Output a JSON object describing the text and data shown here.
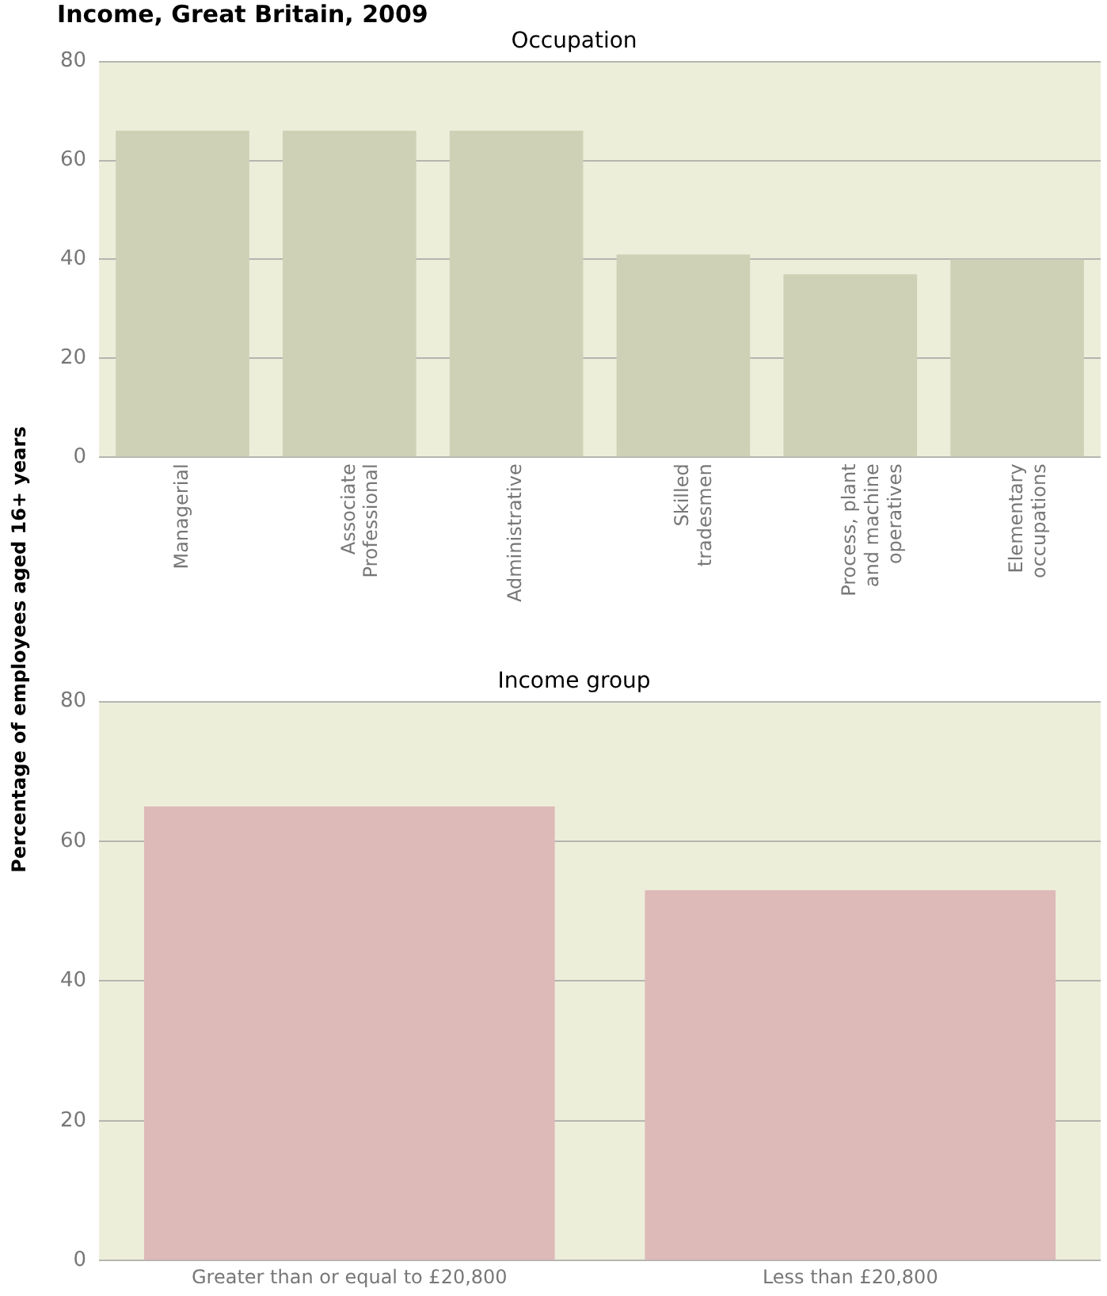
{
  "chart_data": [
    {
      "type": "bar",
      "title": "Occupation",
      "ylabel": "Percentage of employees aged 16+ years",
      "annotations": [
        "Income, Great Britain, 2009"
      ],
      "categories": [
        "Managerial",
        "Associate Professional",
        "Administrative",
        "Skilled tradesmen",
        "Process, plant and machine operatives",
        "Elementary occupations"
      ],
      "values": [
        66,
        66,
        66,
        41,
        37,
        40
      ],
      "color": "#cfd1b6",
      "ylim": [
        0,
        80
      ],
      "yticks": [
        0,
        20,
        40,
        60,
        80
      ],
      "grid": "y"
    },
    {
      "type": "bar",
      "title": "Income group",
      "categories": [
        "Greater than or equal to £20,800",
        "Less than £20,800"
      ],
      "values": [
        65,
        53
      ],
      "color": "#ddb9b8",
      "ylim": [
        0,
        80
      ],
      "yticks": [
        0,
        20,
        40,
        60,
        80
      ],
      "grid": "y"
    }
  ]
}
